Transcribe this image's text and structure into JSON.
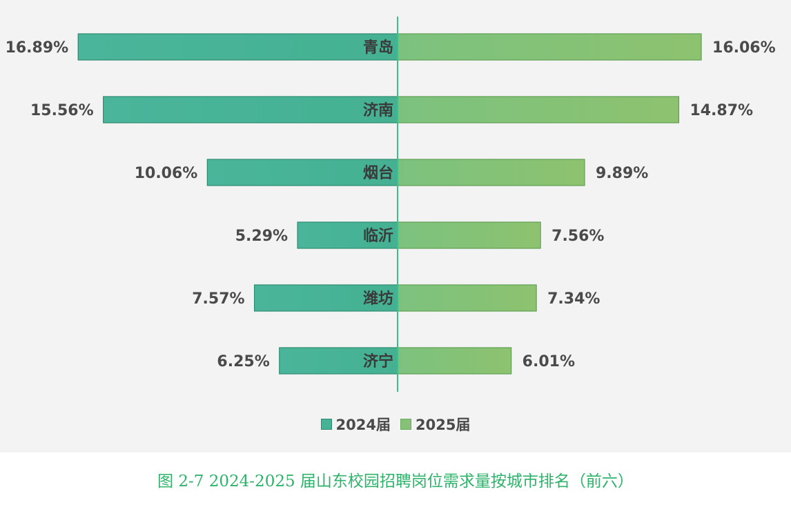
{
  "chart_data": {
    "type": "bar",
    "orientation": "horizontal-butterfly",
    "categories": [
      "青岛",
      "济南",
      "烟台",
      "临沂",
      "潍坊",
      "济宁"
    ],
    "series": [
      {
        "name": "2024届",
        "values": [
          16.89,
          15.56,
          10.06,
          5.29,
          7.57,
          6.25
        ],
        "labels": [
          "16.89%",
          "15.56%",
          "10.06%",
          "5.29%",
          "7.57%",
          "6.25%"
        ],
        "color": "#47b396",
        "side": "left"
      },
      {
        "name": "2025届",
        "values": [
          16.06,
          14.87,
          9.89,
          7.56,
          7.34,
          6.01
        ],
        "labels": [
          "16.06%",
          "14.87%",
          "9.89%",
          "7.56%",
          "7.34%",
          "6.01%"
        ],
        "color": "#86c177",
        "side": "right"
      }
    ],
    "legend_position": "bottom-center",
    "grid": false,
    "title": "",
    "xlabel": "",
    "ylabel": ""
  },
  "caption": "图 2-7 2024-2025 届山东校园招聘岗位需求量按城市排名（前六）",
  "colors": {
    "background": "#f3f3f3",
    "divider": "#3dbf8a",
    "caption": "#2db36a"
  }
}
